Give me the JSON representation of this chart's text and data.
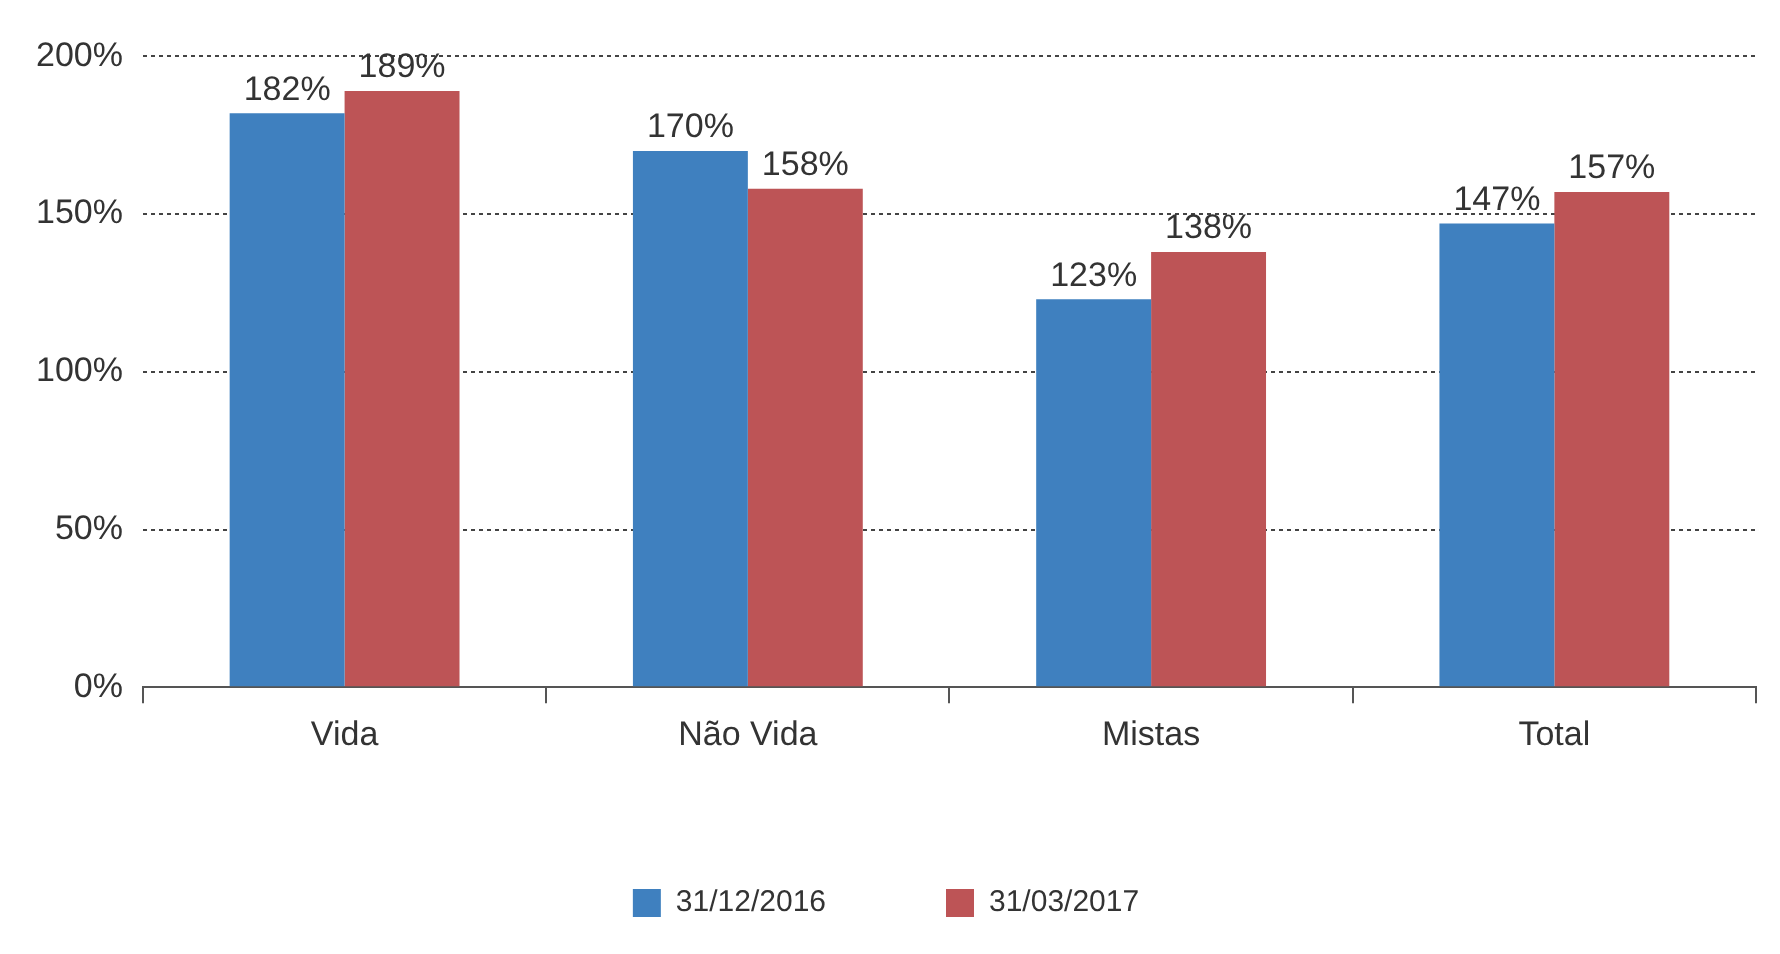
{
  "chart_data": {
    "type": "bar",
    "categories": [
      "Vida",
      "Não Vida",
      "Mistas",
      "Total"
    ],
    "series": [
      {
        "name": "31/12/2016",
        "color": "#3f80bf",
        "values": [
          182,
          170,
          123,
          147
        ],
        "value_labels": [
          "182%",
          "170%",
          "123%",
          "147%"
        ]
      },
      {
        "name": "31/03/2017",
        "color": "#bd5456",
        "values": [
          189,
          158,
          138,
          157
        ],
        "value_labels": [
          "189%",
          "158%",
          "138%",
          "157%"
        ]
      }
    ],
    "ylim": [
      0,
      200
    ],
    "yticks": [
      {
        "value": 0,
        "label": "0%"
      },
      {
        "value": 50,
        "label": "50%"
      },
      {
        "value": 100,
        "label": "100%"
      },
      {
        "value": 150,
        "label": "150%"
      },
      {
        "value": 200,
        "label": "200%"
      }
    ],
    "grid": "y",
    "legend": "bottom"
  }
}
